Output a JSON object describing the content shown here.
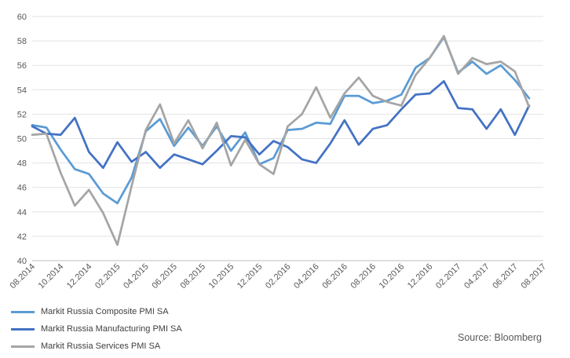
{
  "chart_data": {
    "type": "line",
    "title": "",
    "xlabel": "",
    "ylabel": "",
    "ylim": [
      40,
      60
    ],
    "yticks": [
      40,
      42,
      44,
      46,
      48,
      50,
      52,
      54,
      56,
      58,
      60
    ],
    "grid": "horizontal",
    "legend": "bottom-left",
    "categories": [
      "08.2014",
      "09.2014",
      "10.2014",
      "11.2014",
      "12.2014",
      "01.2015",
      "02.2015",
      "03.2015",
      "04.2015",
      "05.2015",
      "06.2015",
      "07.2015",
      "08.2015",
      "09.2015",
      "10.2015",
      "11.2015",
      "12.2015",
      "01.2016",
      "02.2016",
      "03.2016",
      "04.2016",
      "05.2016",
      "06.2016",
      "07.2016",
      "08.2016",
      "09.2016",
      "10.2016",
      "11.2016",
      "12.2016",
      "01.2017",
      "02.2017",
      "03.2017",
      "04.2017",
      "05.2017",
      "06.2017",
      "07.2017",
      "08.2017"
    ],
    "xtick_labels": [
      "08.2014",
      "10.2014",
      "12.2014",
      "02.2015",
      "04.2015",
      "06.2015",
      "08.2015",
      "10.2015",
      "12.2015",
      "02.2016",
      "04.2016",
      "06.2016",
      "08.2016",
      "10.2016",
      "12.2016",
      "02.2017",
      "04.2017",
      "06.2017",
      "08.2017"
    ],
    "series": [
      {
        "name": "Markit Russia Composite PMI SA",
        "color": "#5B9BD5",
        "values": [
          51.1,
          50.9,
          49.1,
          47.5,
          47.1,
          45.5,
          44.7,
          46.8,
          50.6,
          51.6,
          49.4,
          50.9,
          49.4,
          51.0,
          49.0,
          50.5,
          47.9,
          48.4,
          50.7,
          50.8,
          51.3,
          51.2,
          53.5,
          53.5,
          52.9,
          53.1,
          53.6,
          55.8,
          56.6,
          58.3,
          55.4,
          56.3,
          55.3,
          56.0,
          54.8,
          53.3,
          null
        ]
      },
      {
        "name": "Markit Russia Manufacturing PMI SA",
        "color": "#4472C4",
        "values": [
          51.0,
          50.4,
          50.3,
          51.7,
          48.9,
          47.6,
          49.7,
          48.1,
          48.9,
          47.6,
          48.7,
          48.3,
          47.9,
          49.0,
          50.2,
          50.1,
          48.7,
          49.8,
          49.3,
          48.3,
          48.0,
          49.6,
          51.5,
          49.5,
          50.8,
          51.1,
          52.4,
          53.6,
          53.7,
          54.7,
          52.5,
          52.4,
          50.8,
          52.4,
          50.3,
          52.7,
          null
        ]
      },
      {
        "name": "Markit Russia Services PMI SA",
        "color": "#A5A5A5",
        "values": [
          50.3,
          50.4,
          47.2,
          44.5,
          45.8,
          43.9,
          41.3,
          46.1,
          50.7,
          52.8,
          49.6,
          51.5,
          49.2,
          51.3,
          47.8,
          49.9,
          47.9,
          47.1,
          51.0,
          52.0,
          54.2,
          51.7,
          53.7,
          55.0,
          53.5,
          53.0,
          52.7,
          55.2,
          56.6,
          58.4,
          55.3,
          56.6,
          56.1,
          56.3,
          55.5,
          52.6,
          null
        ]
      }
    ]
  },
  "source_text": "Source: Bloomberg"
}
